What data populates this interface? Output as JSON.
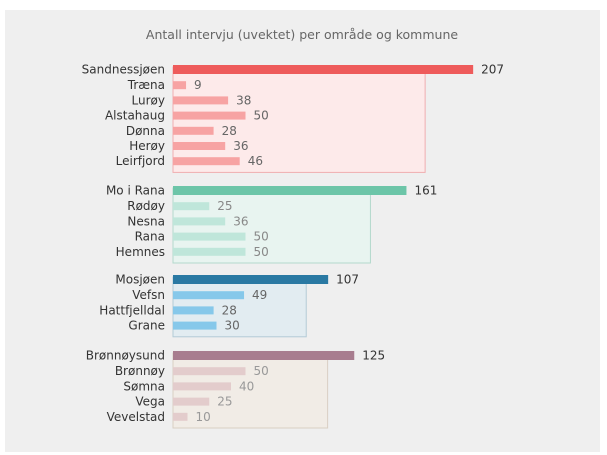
{
  "chart_data": {
    "type": "bar",
    "orientation": "horizontal",
    "title": "Antall intervju (uvektet) per område og kommune",
    "xlim": [
      0,
      210
    ],
    "grid": false,
    "groups": [
      {
        "region": "Sandnessjøen",
        "value": 207,
        "colors": {
          "bar": "#ee5b5b",
          "sub": "#f7a3a3",
          "box": "#fdeaea",
          "border": "#f0aeb0",
          "label": "#666666"
        },
        "municipalities": [
          {
            "name": "Træna",
            "value": 9
          },
          {
            "name": "Lurøy",
            "value": 38
          },
          {
            "name": "Alstahaug",
            "value": 50
          },
          {
            "name": "Dønna",
            "value": 28
          },
          {
            "name": "Herøy",
            "value": 36
          },
          {
            "name": "Leirfjord",
            "value": 46
          }
        ]
      },
      {
        "region": "Mo i Rana",
        "value": 161,
        "colors": {
          "bar": "#6cc5a8",
          "sub": "#bfe6da",
          "box": "#e8f4f0",
          "border": "#b3d9cc",
          "label": "#888888"
        },
        "municipalities": [
          {
            "name": "Rødøy",
            "value": 25
          },
          {
            "name": "Nesna",
            "value": 36
          },
          {
            "name": "Rana",
            "value": 50
          },
          {
            "name": "Hemnes",
            "value": 50
          }
        ]
      },
      {
        "region": "Mosjøen",
        "value": 107,
        "colors": {
          "bar": "#2a79a3",
          "sub": "#86c8ea",
          "box": "#e2ecf1",
          "border": "#b3cbd6",
          "label": "#666666"
        },
        "municipalities": [
          {
            "name": "Vefsn",
            "value": 49
          },
          {
            "name": "Hattfjelldal",
            "value": 28
          },
          {
            "name": "Grane",
            "value": 30
          }
        ]
      },
      {
        "region": "Brønnøysund",
        "value": 125,
        "colors": {
          "bar": "#a87d8f",
          "sub": "#e3cccc",
          "box": "#f1ece6",
          "border": "#d9cfc3",
          "label": "#999999"
        },
        "municipalities": [
          {
            "name": "Brønnøy",
            "value": 50
          },
          {
            "name": "Sømna",
            "value": 40
          },
          {
            "name": "Vega",
            "value": 25
          },
          {
            "name": "Vevelstad",
            "value": 10
          }
        ]
      }
    ]
  }
}
